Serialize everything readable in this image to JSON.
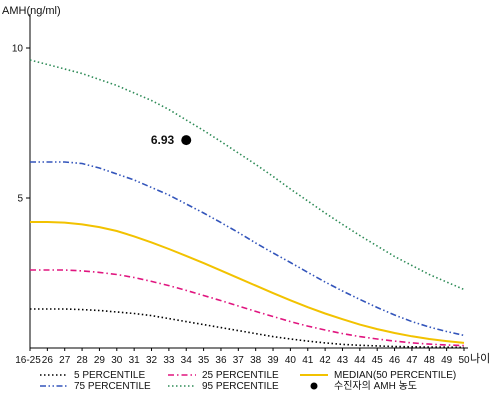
{
  "chart_data": {
    "type": "line",
    "title": "",
    "ylabel": "AMH(ng/ml)",
    "xlabel": "나이",
    "ylim": [
      0,
      11
    ],
    "yticks": [
      5,
      10
    ],
    "x": [
      "16-25",
      "26",
      "27",
      "28",
      "29",
      "30",
      "31",
      "32",
      "33",
      "34",
      "35",
      "36",
      "37",
      "38",
      "39",
      "40",
      "41",
      "42",
      "43",
      "44",
      "45",
      "46",
      "47",
      "48",
      "49",
      "50"
    ],
    "series": [
      {
        "name": "5 PERCENTILE",
        "color": "#000000",
        "dash": "dot",
        "values": [
          1.3,
          1.3,
          1.3,
          1.28,
          1.25,
          1.2,
          1.15,
          1.08,
          0.98,
          0.88,
          0.78,
          0.68,
          0.58,
          0.48,
          0.38,
          0.3,
          0.23,
          0.17,
          0.12,
          0.09,
          0.07,
          0.05,
          0.04,
          0.03,
          0.03,
          0.02
        ]
      },
      {
        "name": "25 PERCENTILE",
        "color": "#e0157f",
        "dash": "dashdot",
        "values": [
          2.6,
          2.6,
          2.6,
          2.57,
          2.52,
          2.45,
          2.35,
          2.22,
          2.08,
          1.92,
          1.75,
          1.58,
          1.4,
          1.22,
          1.05,
          0.88,
          0.73,
          0.6,
          0.48,
          0.38,
          0.3,
          0.23,
          0.17,
          0.13,
          0.1,
          0.08
        ]
      },
      {
        "name": "MEDIAN(50 PERCENTILE)",
        "color": "#f2c200",
        "dash": "solid",
        "values": [
          4.2,
          4.2,
          4.18,
          4.12,
          4.03,
          3.9,
          3.72,
          3.52,
          3.3,
          3.07,
          2.83,
          2.58,
          2.33,
          2.08,
          1.83,
          1.59,
          1.36,
          1.15,
          0.96,
          0.78,
          0.63,
          0.5,
          0.39,
          0.3,
          0.23,
          0.17
        ]
      },
      {
        "name": "75 PERCENTILE",
        "color": "#3355bb",
        "dash": "dashdotdot",
        "values": [
          6.2,
          6.2,
          6.2,
          6.15,
          6.0,
          5.8,
          5.6,
          5.35,
          5.1,
          4.8,
          4.5,
          4.18,
          3.85,
          3.5,
          3.17,
          2.85,
          2.52,
          2.2,
          1.9,
          1.62,
          1.35,
          1.1,
          0.88,
          0.7,
          0.55,
          0.42
        ]
      },
      {
        "name": "95 PERCENTILE",
        "color": "#2e8b57",
        "dash": "dot",
        "values": [
          9.6,
          9.45,
          9.3,
          9.15,
          8.95,
          8.75,
          8.5,
          8.25,
          7.95,
          7.6,
          7.25,
          6.88,
          6.5,
          6.12,
          5.72,
          5.3,
          4.9,
          4.5,
          4.12,
          3.75,
          3.4,
          3.05,
          2.75,
          2.45,
          2.2,
          1.95
        ]
      }
    ],
    "point": {
      "name": "수진자의 AMH 농도",
      "x": "34",
      "y": 6.93,
      "label": "6.93"
    },
    "legend": {
      "placement": "bottom",
      "row1": [
        "5 PERCENTILE",
        "25 PERCENTILE",
        "MEDIAN(50 PERCENTILE)"
      ],
      "row2": [
        "75 PERCENTILE",
        "95 PERCENTILE",
        "수진자의 AMH 농도"
      ]
    }
  }
}
